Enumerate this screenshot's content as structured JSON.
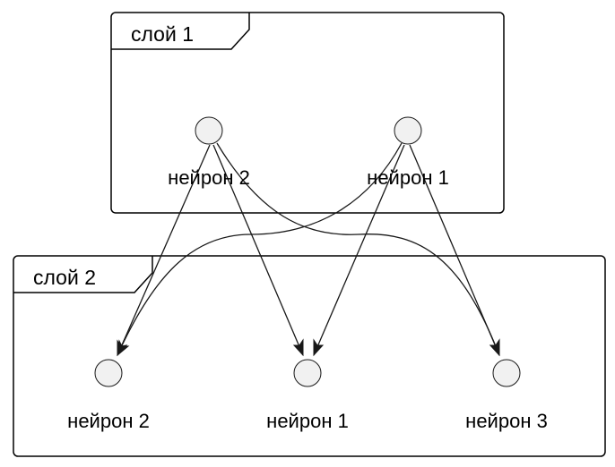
{
  "layers": [
    {
      "title": "слой 1",
      "nodes": [
        {
          "label": "нейрон 2"
        },
        {
          "label": "нейрон 1"
        }
      ]
    },
    {
      "title": "слой 2",
      "nodes": [
        {
          "label": "нейрон 2"
        },
        {
          "label": "нейрон 1"
        },
        {
          "label": "нейрон 3"
        }
      ]
    }
  ],
  "edges": [
    {
      "from": "слой 1 / нейрон 2",
      "to": "слой 2 / нейрон 2"
    },
    {
      "from": "слой 1 / нейрон 2",
      "to": "слой 2 / нейрон 1"
    },
    {
      "from": "слой 1 / нейрон 2",
      "to": "слой 2 / нейрон 3"
    },
    {
      "from": "слой 1 / нейрон 1",
      "to": "слой 2 / нейрон 2"
    },
    {
      "from": "слой 1 / нейрон 1",
      "to": "слой 2 / нейрон 1"
    },
    {
      "from": "слой 1 / нейрон 1",
      "to": "слой 2 / нейрон 3"
    }
  ]
}
